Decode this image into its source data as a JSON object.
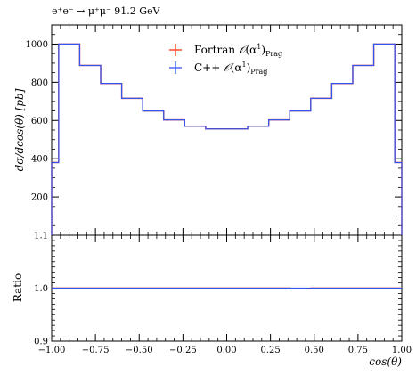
{
  "chart_data": [
    {
      "type": "line",
      "step": true,
      "title": "e⁺e⁻ → μ⁺μ⁻ 91.2 GeV",
      "ylabel": "dσ/dcos(θ) [pb]",
      "xlabel": "",
      "xlim": [
        -1.0,
        1.0
      ],
      "ylim": [
        0,
        1100
      ],
      "yticks": [
        200,
        400,
        600,
        800,
        1000
      ],
      "bin_edges": [
        -1.0,
        -0.96,
        -0.84,
        -0.72,
        -0.6,
        -0.48,
        -0.36,
        -0.24,
        -0.12,
        0.0,
        0.12,
        0.24,
        0.36,
        0.48,
        0.6,
        0.72,
        0.84,
        0.96,
        1.0
      ],
      "series": [
        {
          "name": "Fortran 𝒪(α¹)Prag",
          "color": "#ff3300",
          "values": [
            380,
            1000,
            888,
            794,
            716,
            650,
            603,
            570,
            556,
            556,
            570,
            603,
            650,
            716,
            794,
            888,
            1000,
            380
          ]
        },
        {
          "name": "C++ 𝒪(α¹)Prag",
          "color": "#3355ee",
          "values": [
            380,
            1000,
            888,
            794,
            716,
            650,
            603,
            570,
            556,
            556,
            570,
            603,
            650,
            716,
            794,
            888,
            1000,
            380
          ]
        }
      ],
      "legend": "top-center"
    },
    {
      "type": "line",
      "step": true,
      "ylabel": "Ratio",
      "xlabel": "cos(θ)",
      "xlim": [
        -1.0,
        1.0
      ],
      "ylim": [
        0.9,
        1.1
      ],
      "yticks": [
        0.9,
        1.0,
        1.1
      ],
      "xticks": [
        -1.0,
        -0.75,
        -0.5,
        -0.25,
        0.0,
        0.25,
        0.5,
        0.75,
        1.0
      ],
      "bin_edges": [
        -1.0,
        -0.96,
        -0.84,
        -0.72,
        -0.6,
        -0.48,
        -0.36,
        -0.24,
        -0.12,
        0.0,
        0.12,
        0.24,
        0.36,
        0.48,
        0.6,
        0.72,
        0.84,
        0.96,
        1.0
      ],
      "series": [
        {
          "name": "Fortran 𝒪(α¹)Prag",
          "color": "#ff3300",
          "values": [
            1.0,
            1.0,
            1.0,
            1.0,
            1.0,
            1.0,
            1.0,
            1.0,
            1.0,
            1.0,
            1.0,
            1.0,
            0.999,
            1.0,
            1.0,
            1.0,
            1.0,
            1.0
          ]
        },
        {
          "name": "C++ 𝒪(α¹)Prag",
          "color": "#3355ee",
          "values": [
            1.0,
            1.0,
            1.0,
            1.0,
            1.0,
            1.0,
            1.0,
            1.0,
            1.0,
            1.0,
            1.0,
            1.0,
            1.0,
            1.0,
            1.0,
            1.0,
            1.0,
            1.0
          ]
        }
      ]
    }
  ],
  "labels": {
    "title": "e⁺e⁻ → μ⁺μ⁻ 91.2 GeV",
    "top_ylabel": "dσ/dcos(θ) [pb]",
    "ratio_ylabel": "Ratio",
    "xlabel": "cos(θ)"
  },
  "legend": {
    "entry1_prefix": "Fortran ",
    "entry2_prefix": "C++ ",
    "order_symbol": "𝒪",
    "order_arg": "(α",
    "order_power": "1",
    "order_close": ")",
    "order_sub": "Prag"
  }
}
